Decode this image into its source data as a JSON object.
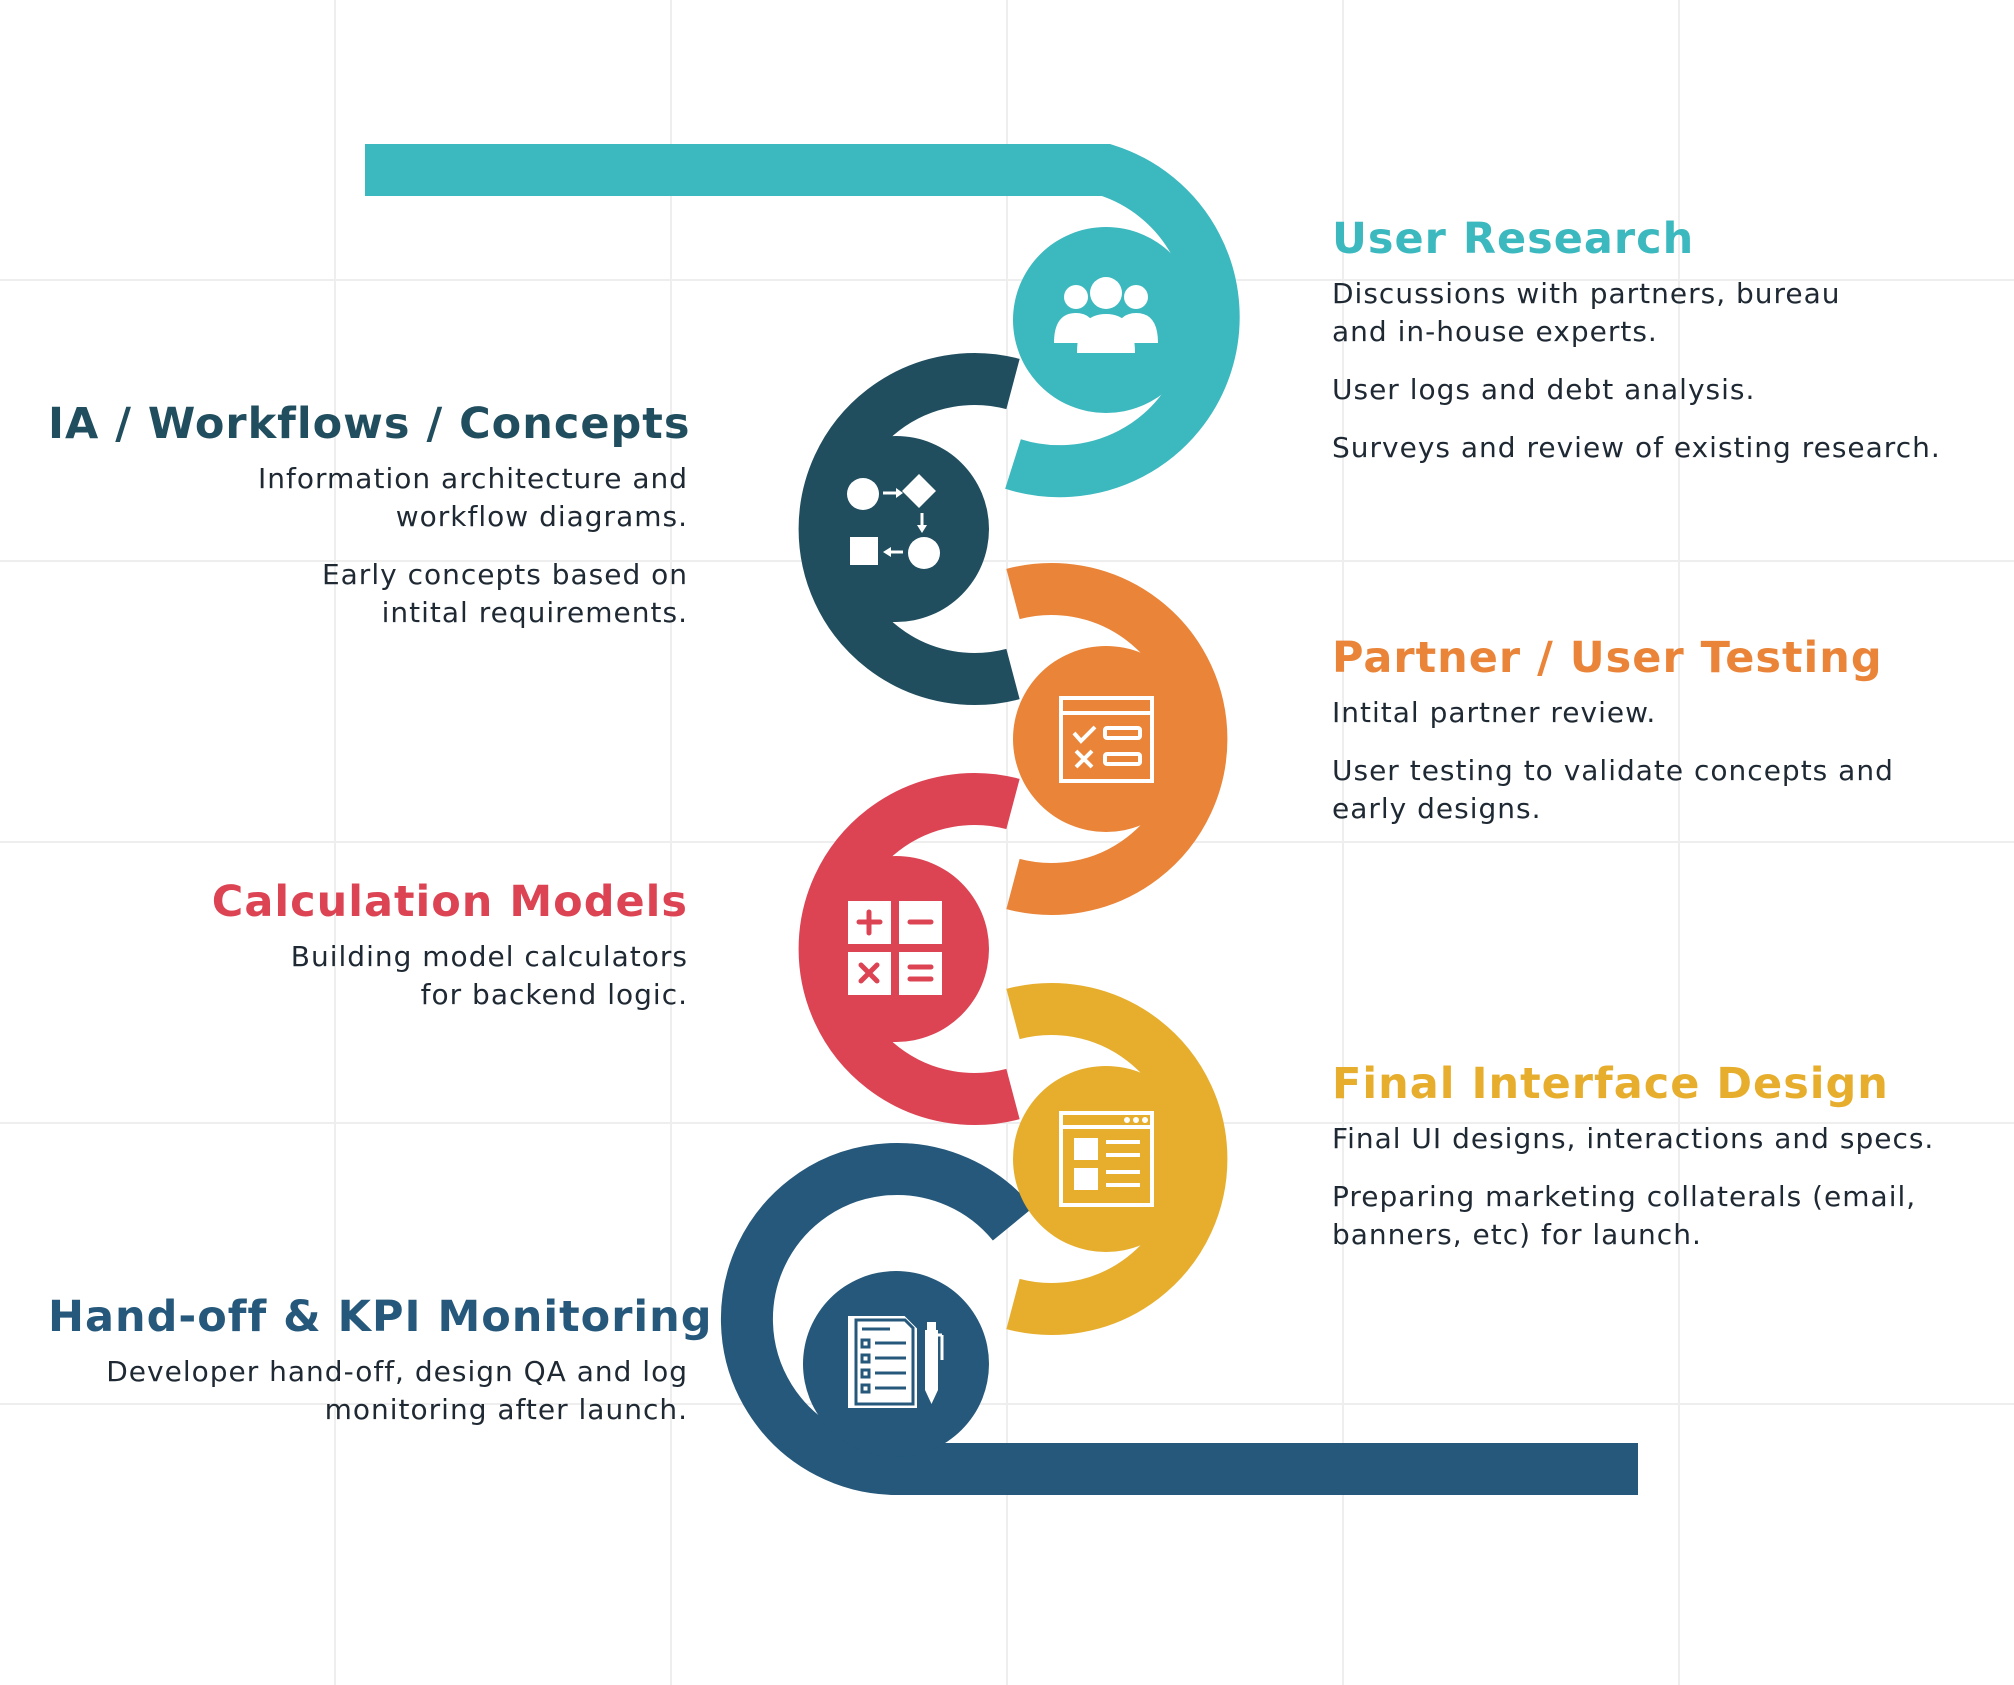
{
  "colors": {
    "teal": "#3cb8bf",
    "dark_slate": "#204e5f",
    "orange": "#ea8438",
    "red": "#dc4454",
    "yellow": "#e7ae2e",
    "navy": "#25587b",
    "grid": "#eeeeee",
    "body_text": "#1f2933"
  },
  "steps": [
    {
      "title": "User Research",
      "icon": "users-group-icon",
      "color": "#3cb8bf",
      "paragraphs": [
        "Discussions with partners, bureau\nand in-house experts.",
        "User logs and debt analysis.",
        "Surveys and review of existing research."
      ]
    },
    {
      "title": "IA / Workflows / Concepts",
      "icon": "workflow-diagram-icon",
      "color": "#204e5f",
      "paragraphs": [
        "Information architecture and\nworkflow diagrams.",
        "Early concepts based on\nintital requirements."
      ]
    },
    {
      "title": "Partner / User Testing",
      "icon": "checklist-window-icon",
      "color": "#ea8438",
      "paragraphs": [
        "Intital partner review.",
        "User testing to validate concepts and\nearly designs."
      ]
    },
    {
      "title": "Calculation Models",
      "icon": "calculator-icon",
      "color": "#dc4454",
      "paragraphs": [
        "Building model calculators\nfor backend logic."
      ]
    },
    {
      "title": "Final Interface Design",
      "icon": "interface-layout-icon",
      "color": "#e7ae2e",
      "paragraphs": [
        "Final UI designs, interactions and specs.",
        "Preparing marketing collaterals (email,\nbanners, etc) for launch."
      ]
    },
    {
      "title": "Hand-off & KPI Monitoring",
      "icon": "document-pen-icon",
      "color": "#25587b",
      "paragraphs": [
        "Developer hand-off, design QA and  log\nmonitoring after launch."
      ]
    }
  ]
}
